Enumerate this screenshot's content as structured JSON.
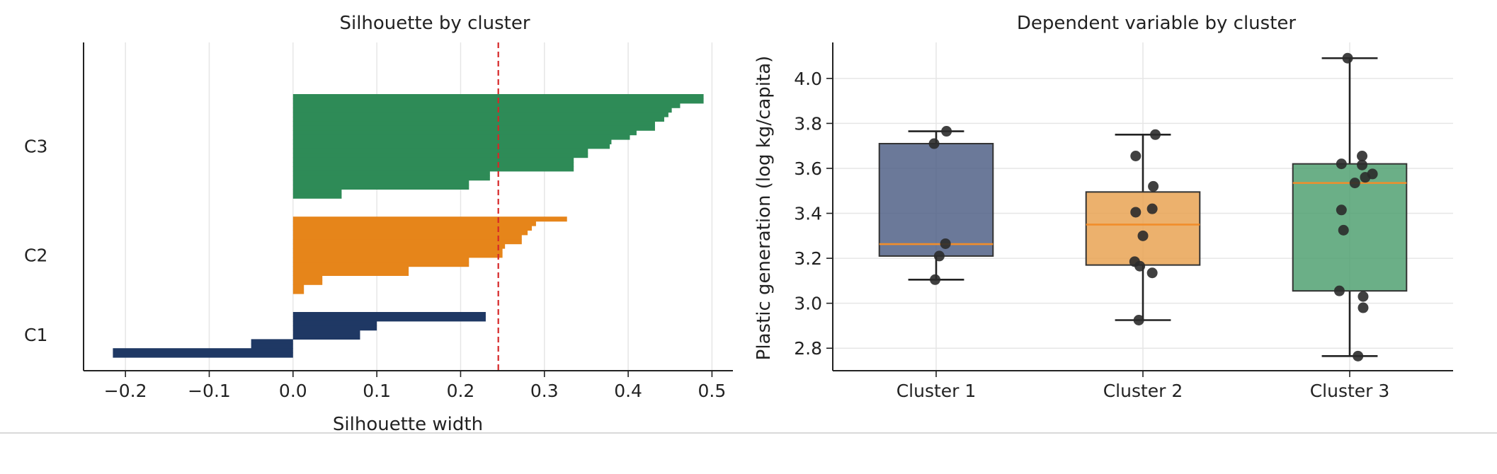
{
  "chart_data": [
    {
      "type": "bar",
      "orientation": "horizontal",
      "title": "Silhouette by cluster",
      "xlabel": "Silhouette width",
      "ylabel": "",
      "xlim": [
        -0.25,
        0.525
      ],
      "xticks": [
        -0.2,
        -0.1,
        0.0,
        0.1,
        0.2,
        0.3,
        0.4,
        0.5
      ],
      "xtick_labels": [
        "−0.2",
        "−0.1",
        "0.0",
        "0.1",
        "0.2",
        "0.3",
        "0.4",
        "0.5"
      ],
      "grid": "x",
      "average_line": 0.245,
      "average_line_style": "dashed",
      "average_line_color": "#d62728",
      "clusters": [
        {
          "label": "C1",
          "color": "#1f3864",
          "values": [
            0.23,
            0.23,
            0.1,
            0.1,
            0.08,
            0.08,
            -0.05,
            -0.05,
            -0.215,
            -0.215
          ]
        },
        {
          "label": "C2",
          "color": "#e6851a",
          "values": [
            0.327,
            0.29,
            0.285,
            0.28,
            0.273,
            0.273,
            0.253,
            0.25,
            0.25,
            0.21,
            0.21,
            0.138,
            0.138,
            0.035,
            0.035,
            0.013,
            0.013
          ]
        },
        {
          "label": "C3",
          "color": "#2e8b57",
          "values": [
            0.49,
            0.49,
            0.462,
            0.452,
            0.448,
            0.443,
            0.432,
            0.432,
            0.41,
            0.402,
            0.38,
            0.378,
            0.352,
            0.352,
            0.335,
            0.335,
            0.335,
            0.235,
            0.235,
            0.21,
            0.21,
            0.058,
            0.058
          ]
        }
      ]
    },
    {
      "type": "box",
      "title": "Dependent variable by cluster",
      "xlabel": "",
      "ylabel": "Plastic generation (log kg/capita)",
      "ylim": [
        2.7,
        4.16
      ],
      "yticks": [
        2.8,
        3.0,
        3.2,
        3.4,
        3.6,
        3.8,
        4.0
      ],
      "ytick_labels": [
        "2.8",
        "3.0",
        "3.2",
        "3.4",
        "3.6",
        "3.8",
        "4.0"
      ],
      "grid": "both",
      "median_color": "#f28e2b",
      "series": [
        {
          "name": "Cluster 1",
          "color": "#4b5c82",
          "box": {
            "whisker_low": 3.105,
            "q1": 3.21,
            "median": 3.263,
            "q3": 3.71,
            "whisker_high": 3.765
          },
          "points": [
            [
              -0.02,
              3.71
            ],
            [
              0.1,
              3.765
            ],
            [
              0.09,
              3.265
            ],
            [
              0.03,
              3.21
            ],
            [
              -0.01,
              3.105
            ]
          ]
        },
        {
          "name": "Cluster 2",
          "color": "#e8a04d",
          "box": {
            "whisker_low": 2.925,
            "q1": 3.17,
            "median": 3.35,
            "q3": 3.495,
            "whisker_high": 3.75
          },
          "points": [
            [
              -0.07,
              3.655
            ],
            [
              0.12,
              3.75
            ],
            [
              0.1,
              3.52
            ],
            [
              0.09,
              3.42
            ],
            [
              -0.07,
              3.405
            ],
            [
              0.0,
              3.3
            ],
            [
              -0.08,
              3.185
            ],
            [
              -0.03,
              3.165
            ],
            [
              0.09,
              3.135
            ],
            [
              -0.04,
              2.925
            ]
          ]
        },
        {
          "name": "Cluster 3",
          "color": "#4a9e6d",
          "box": {
            "whisker_low": 2.765,
            "q1": 3.055,
            "median": 3.535,
            "q3": 3.62,
            "whisker_high": 4.09
          },
          "points": [
            [
              -0.02,
              4.09
            ],
            [
              0.12,
              3.655
            ],
            [
              -0.08,
              3.62
            ],
            [
              0.12,
              3.615
            ],
            [
              0.05,
              3.535
            ],
            [
              0.15,
              3.56
            ],
            [
              0.22,
              3.575
            ],
            [
              -0.08,
              3.415
            ],
            [
              -0.06,
              3.325
            ],
            [
              -0.1,
              3.055
            ],
            [
              0.13,
              3.03
            ],
            [
              0.13,
              2.98
            ],
            [
              0.08,
              2.765
            ]
          ]
        }
      ]
    }
  ]
}
